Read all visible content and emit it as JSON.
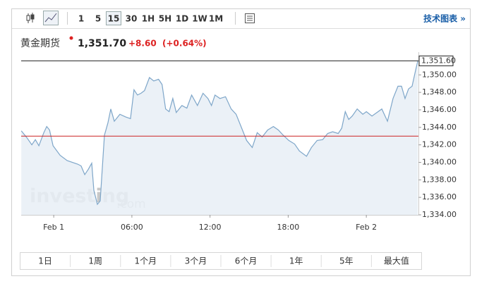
{
  "toolbar": {
    "intervals": [
      "1",
      "5",
      "15",
      "30",
      "1H",
      "5H",
      "1D",
      "1W",
      "1M"
    ],
    "link": "技术图表 »"
  },
  "quote": {
    "name": "黄金期货",
    "price": "1,351.70",
    "change": "+8.60",
    "change_pct": "(+0.64%)"
  },
  "chart_data": {
    "type": "area",
    "x": [
      -2.49,
      -2.05,
      -1.68,
      -1.41,
      -1.14,
      -0.76,
      -0.54,
      -0.32,
      -0.05,
      0.49,
      1.03,
      1.84,
      2.1,
      2.38,
      2.65,
      2.92,
      3.08,
      3.35,
      3.57,
      3.89,
      4.16,
      4.38,
      4.65,
      5.08,
      5.51,
      5.89,
      6.16,
      6.43,
      6.7,
      6.97,
      7.35,
      7.68,
      8.05,
      8.32,
      8.59,
      8.86,
      9.14,
      9.41,
      9.84,
      10.22,
      10.59,
      11.03,
      11.46,
      11.84,
      12.11,
      12.38,
      12.76,
      13.19,
      13.62,
      14.0,
      14.38,
      14.81,
      15.24,
      15.62,
      16.0,
      16.43,
      16.86,
      17.24,
      17.62,
      18.05,
      18.49,
      18.86,
      19.41,
      19.78,
      20.22,
      20.65,
      21.03,
      21.41,
      21.84,
      22.11,
      22.38,
      22.65,
      22.92,
      23.3,
      23.73,
      24.0,
      24.43,
      24.81,
      25.19,
      25.62,
      26.05,
      26.43,
      26.7,
      26.97,
      27.24,
      27.51,
      27.78,
      27.95
    ],
    "values": [
      1343.6,
      1342.8,
      1342.0,
      1342.6,
      1341.9,
      1343.4,
      1344.1,
      1343.7,
      1341.9,
      1340.8,
      1340.2,
      1339.8,
      1339.6,
      1338.6,
      1339.2,
      1339.9,
      1336.8,
      1335.2,
      1335.6,
      1343.1,
      1344.5,
      1346.1,
      1344.7,
      1345.5,
      1345.2,
      1345.0,
      1348.3,
      1347.7,
      1347.9,
      1348.2,
      1349.7,
      1349.3,
      1349.5,
      1348.9,
      1346.1,
      1345.8,
      1347.3,
      1345.7,
      1346.5,
      1346.2,
      1347.7,
      1346.5,
      1347.9,
      1347.3,
      1346.5,
      1347.7,
      1347.3,
      1347.5,
      1346.1,
      1345.5,
      1344.1,
      1342.5,
      1341.7,
      1343.4,
      1342.9,
      1343.7,
      1344.1,
      1343.7,
      1343.1,
      1342.5,
      1342.1,
      1341.3,
      1340.7,
      1341.7,
      1342.5,
      1342.6,
      1343.3,
      1343.5,
      1343.3,
      1343.9,
      1345.8,
      1344.9,
      1345.3,
      1346.1,
      1345.5,
      1345.8,
      1345.3,
      1345.7,
      1346.1,
      1344.7,
      1347.3,
      1348.7,
      1348.7,
      1347.3,
      1348.4,
      1348.7,
      1350.5,
      1351.6
    ],
    "color": "#7ea6c9",
    "fill": "#e7eef6",
    "xlim": [
      -2.5,
      28
    ],
    "xticks": [
      {
        "value": 0,
        "label": "Feb 1"
      },
      {
        "value": 6,
        "label": "06:00"
      },
      {
        "value": 12,
        "label": "12:00"
      },
      {
        "value": 18,
        "label": "18:00"
      },
      {
        "value": 24,
        "label": "Feb 2"
      }
    ],
    "ylim": [
      1334,
      1352.6
    ],
    "yticks": [
      {
        "value": 1334,
        "label": "1,334.00"
      },
      {
        "value": 1336,
        "label": "1,336.00"
      },
      {
        "value": 1338,
        "label": "1,338.00"
      },
      {
        "value": 1340,
        "label": "1,340.00"
      },
      {
        "value": 1342,
        "label": "1,342.00"
      },
      {
        "value": 1344,
        "label": "1,344.00"
      },
      {
        "value": 1346,
        "label": "1,346.00"
      },
      {
        "value": 1348,
        "label": "1,348.00"
      },
      {
        "value": 1350,
        "label": "1,350.00"
      }
    ],
    "reference_line": 1343.0,
    "reference_color": "#cc2222",
    "last_value": {
      "value": 1351.6,
      "label": "1,351.60"
    },
    "watermark": "investing",
    "watermark_domain": ".com"
  },
  "ranges": [
    "1日",
    "1周",
    "1个月",
    "3个月",
    "6个月",
    "1年",
    "5年",
    "最大值"
  ]
}
